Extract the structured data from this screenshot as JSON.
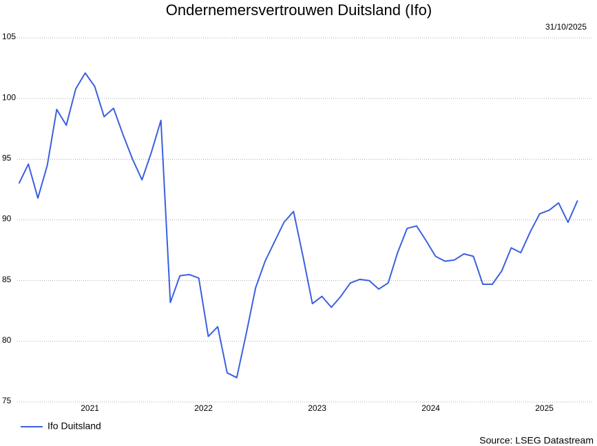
{
  "chart_data": {
    "type": "line",
    "title": "Ondernemersvertrouwen Duitsland (Ifo)",
    "date": "31/10/2025",
    "source": "Source: LSEG Datastream",
    "x": [
      2020.875,
      2020.958,
      2021.042,
      2021.125,
      2021.208,
      2021.292,
      2021.375,
      2021.458,
      2021.542,
      2021.625,
      2021.708,
      2021.792,
      2021.875,
      2021.958,
      2022.042,
      2022.125,
      2022.208,
      2022.292,
      2022.375,
      2022.458,
      2022.542,
      2022.625,
      2022.708,
      2022.792,
      2022.875,
      2022.958,
      2023.042,
      2023.125,
      2023.208,
      2023.292,
      2023.375,
      2023.458,
      2023.542,
      2023.625,
      2023.708,
      2023.792,
      2023.875,
      2023.958,
      2024.042,
      2024.125,
      2024.208,
      2024.292,
      2024.375,
      2024.458,
      2024.542,
      2024.625,
      2024.708,
      2024.792,
      2024.875,
      2024.958,
      2025.042,
      2025.125,
      2025.208,
      2025.292,
      2025.375,
      2025.458,
      2025.542,
      2025.625,
      2025.708,
      2025.792
    ],
    "series": [
      {
        "name": "Ifo Duitsland",
        "color": "#3a5fe0",
        "values": [
          93.0,
          94.6,
          91.8,
          94.5,
          99.1,
          97.8,
          100.8,
          102.1,
          101.0,
          98.5,
          99.2,
          97.0,
          95.0,
          93.3,
          95.6,
          98.2,
          83.2,
          85.4,
          85.5,
          85.2,
          80.4,
          81.2,
          77.4,
          77.0,
          80.6,
          84.4,
          86.6,
          88.2,
          89.8,
          90.7,
          87.0,
          83.1,
          83.7,
          82.8,
          83.7,
          84.8,
          85.1,
          85.0,
          84.3,
          84.8,
          87.3,
          89.3,
          89.5,
          88.3,
          87.0,
          86.6,
          86.7,
          87.2,
          87.0,
          84.7,
          84.7,
          85.8,
          87.7,
          87.3,
          89.0,
          90.5,
          90.8,
          91.4,
          89.8,
          91.6
        ]
      }
    ],
    "xlim": [
      2020.86,
      2025.86
    ],
    "xticks": [
      2021,
      2022,
      2023,
      2024,
      2025
    ],
    "ylim": [
      75,
      105
    ],
    "yticks": [
      75,
      80,
      85,
      90,
      95,
      100,
      105
    ],
    "grid": true,
    "legend": "bottom-left"
  }
}
